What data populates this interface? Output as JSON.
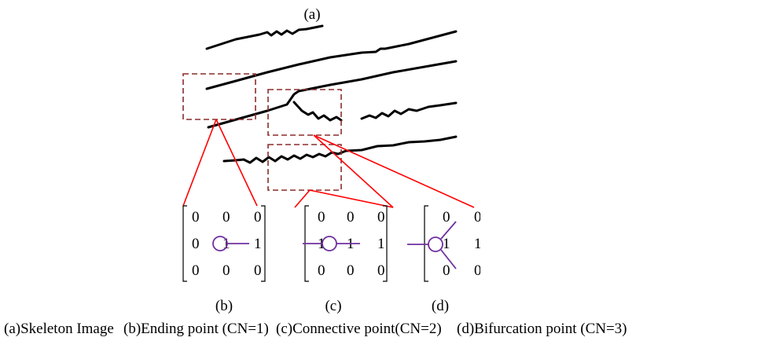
{
  "labels": {
    "a": "(a)",
    "b": "(b)",
    "c": "(c)",
    "d": "(d)"
  },
  "caption": {
    "a": "(a)Skeleton Image",
    "b": "(b)Ending point (CN=1)",
    "c": "(c)Connective point(CN=2)",
    "d": "(d)Bifurcation point (CN=3)"
  },
  "matrices": {
    "b": [
      [
        "0",
        "0",
        "0"
      ],
      [
        "0",
        "1",
        "1"
      ],
      [
        "0",
        "0",
        "0"
      ]
    ],
    "c": [
      [
        "0",
        "0",
        "0"
      ],
      [
        "1",
        "1",
        "1"
      ],
      [
        "0",
        "0",
        "0"
      ]
    ],
    "d": [
      [
        "0",
        "0"
      ],
      [
        "1",
        "1"
      ],
      [
        "0",
        "0"
      ]
    ]
  },
  "colors": {
    "ridge": "#000000",
    "box": "#8b2c2c",
    "leader": "#ff0000",
    "marker": "#7030a0"
  }
}
